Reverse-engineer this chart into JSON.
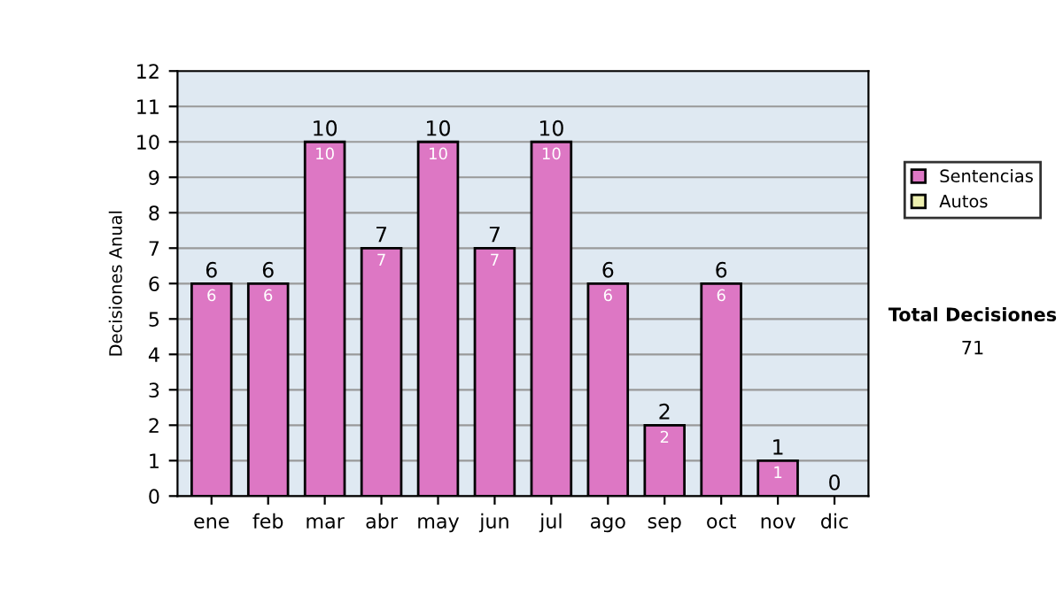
{
  "chart_data": {
    "type": "bar",
    "ylabel": "Decisiones Anual",
    "categories": [
      "ene",
      "feb",
      "mar",
      "abr",
      "may",
      "jun",
      "jul",
      "ago",
      "sep",
      "oct",
      "nov",
      "dic"
    ],
    "series": [
      {
        "name": "Sentencias",
        "color": "#dd77c4",
        "values": [
          6,
          6,
          10,
          7,
          10,
          7,
          10,
          6,
          2,
          6,
          1,
          0
        ],
        "value_labels": [
          "6",
          "6",
          "10",
          "7",
          "10",
          "7",
          "10",
          "6",
          "2",
          "6",
          "1",
          null
        ]
      },
      {
        "name": "Autos",
        "color": "#eef0b0",
        "values": [
          0,
          0,
          0,
          0,
          0,
          0,
          0,
          0,
          0,
          0,
          0,
          0
        ]
      }
    ],
    "stacked": true,
    "totals": [
      "6",
      "6",
      "10",
      "7",
      "10",
      "7",
      "10",
      "6",
      "2",
      "6",
      "1",
      "0"
    ],
    "ylim": [
      0,
      12
    ],
    "yticks": [
      0,
      1,
      2,
      3,
      4,
      5,
      6,
      7,
      8,
      9,
      10,
      11,
      12
    ],
    "grid": "y",
    "legend": "right",
    "annotations": [
      "Total Decisiones",
      "71"
    ]
  }
}
